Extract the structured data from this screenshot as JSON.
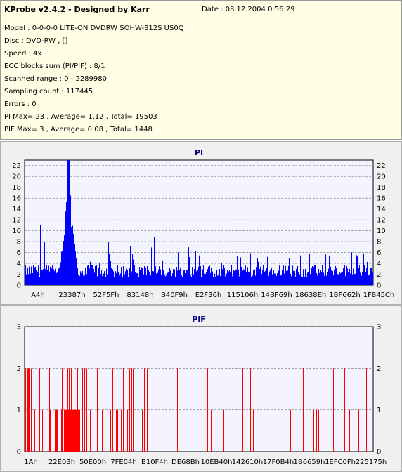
{
  "info": {
    "title": "KProbe v2.4.2 - Designed by Karr",
    "date": "Date : 08.12.2004 0:56:29",
    "model": "Model : 0-0-0-0 LITE-ON DVDRW SOHW-812S  US0Q",
    "disc": "Disc : DVD-RW ,  []",
    "speed": "Speed : 4x",
    "ecc": "ECC blocks sum (PI/PIF) : 8/1",
    "range": "Scanned range : 0 - 2289980",
    "sampling": "Sampling count : 117445",
    "errors": "Errors : 0",
    "pi_stats": "PI Max= 23 , Average= 1,12 , Total= 19503",
    "pif_stats": "PIF Max= 3 , Average= 0,08 , Total= 1448"
  },
  "colors": {
    "pi_bar": "#0000ff",
    "pif_bar": "#ff0000",
    "plot_bg": "#f4f4ff",
    "grid": "#707070"
  },
  "chart_data": [
    {
      "type": "bar",
      "title": "PI",
      "ylim": [
        0,
        23
      ],
      "yticks": [
        0,
        2,
        4,
        6,
        8,
        10,
        12,
        14,
        16,
        18,
        20,
        22
      ],
      "xticks": [
        "A4h",
        "23387h",
        "52F5Fh",
        "83148h",
        "B40F9h",
        "E2F36h",
        "115106h",
        "14BF69h",
        "18638Eh",
        "1BF662h",
        "1F845Ch"
      ],
      "grid": true,
      "max": 23,
      "average": 1.12,
      "peak_region": [
        0.1,
        0.15
      ]
    },
    {
      "type": "bar",
      "title": "PIF",
      "ylim": [
        0,
        3
      ],
      "yticks": [
        0,
        1,
        2,
        3
      ],
      "xticks": [
        "1Ah",
        "22E03h",
        "50E00h",
        "7FE04h",
        "B10F4h",
        "DE68Bh",
        "10EB40h",
        "142610h",
        "17F0B4h",
        "1B6659h",
        "1EFC0Fh",
        "225175h"
      ],
      "grid": true,
      "max": 3,
      "average": 0.08,
      "dense_region": [
        0.115,
        0.16
      ]
    }
  ]
}
